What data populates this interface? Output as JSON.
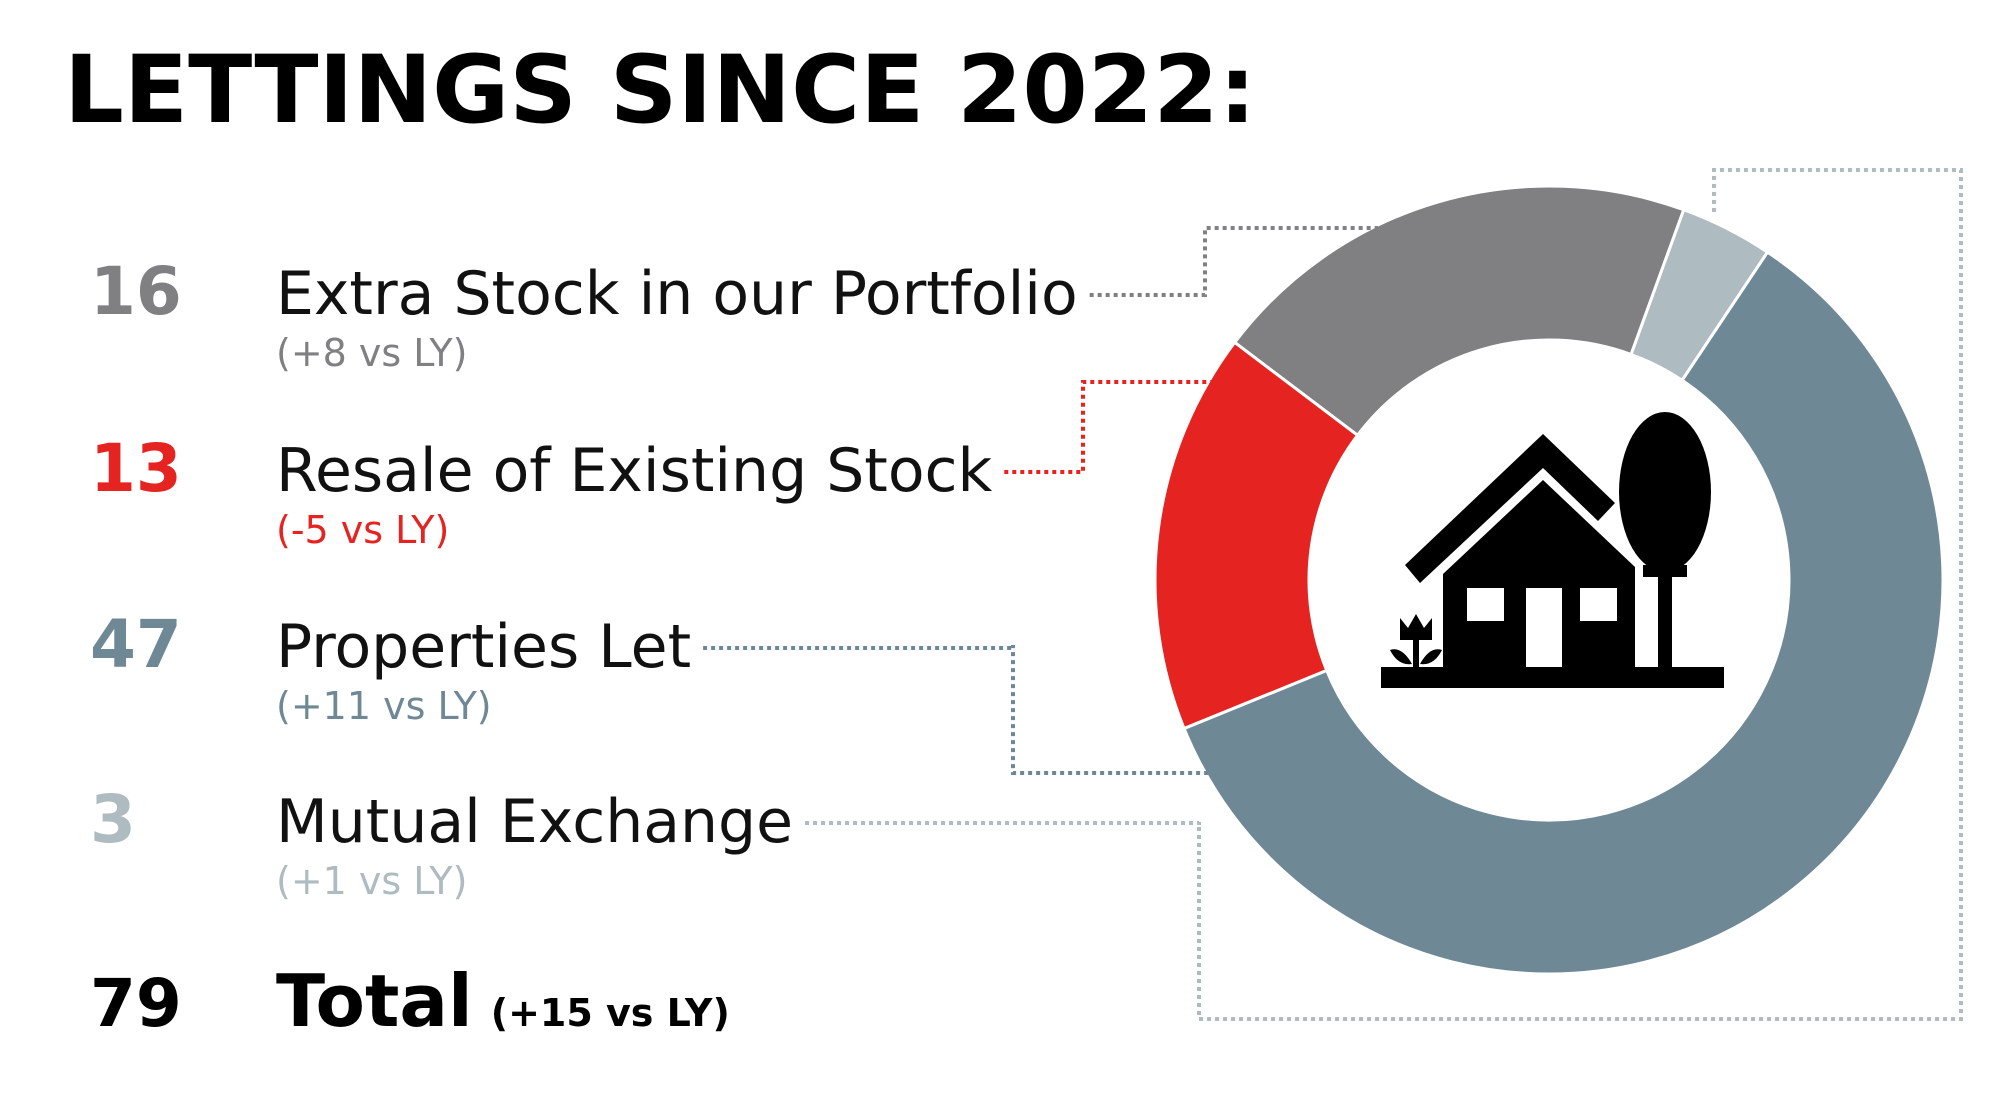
{
  "chart_data": {
    "type": "donut",
    "title": "LETTINGS SINCE 2022:",
    "categories": [
      "Extra Stock in our Portfolio",
      "Resale of Existing Stock",
      "Properties Let",
      "Mutual Exchange"
    ],
    "values": [
      16,
      13,
      47,
      3
    ],
    "change_labels": [
      "(+8 vs LY)",
      "(-5 vs LY)",
      "(+11 vs LY)",
      "(+1 vs LY)"
    ],
    "colors": [
      "#808083",
      "#e52421",
      "#6e8896",
      "#aebbc0"
    ],
    "total": {
      "name": "Total",
      "value": 79,
      "change_label": "(+15 vs LY)"
    }
  }
}
